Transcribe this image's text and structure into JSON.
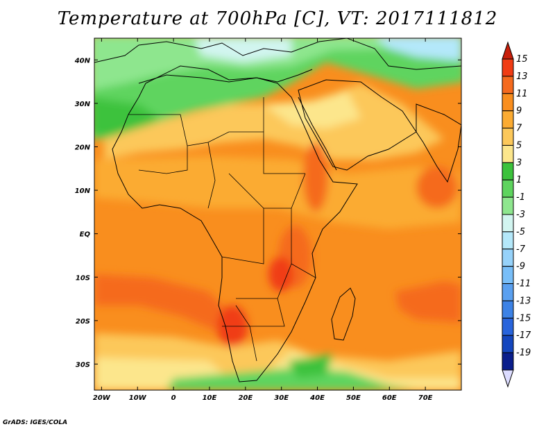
{
  "title": "Temperature at 700hPa [C], VT: 2017111812",
  "credit": "GrADS: IGES/COLA",
  "map": {
    "lon_range": [
      -22,
      80
    ],
    "lat_range": [
      -36,
      45
    ],
    "x_ticks": [
      "20W",
      "10W",
      "0",
      "10E",
      "20E",
      "30E",
      "40E",
      "50E",
      "60E",
      "70E"
    ],
    "x_tick_lons": [
      -20,
      -10,
      0,
      10,
      20,
      30,
      40,
      50,
      60,
      70
    ],
    "y_ticks": [
      "40N",
      "30N",
      "20N",
      "10N",
      "EQ",
      "10S",
      "20S",
      "30S"
    ],
    "y_tick_lats": [
      40,
      30,
      20,
      10,
      0,
      -10,
      -20,
      -30
    ],
    "border_color": "#000000"
  },
  "colorbar": {
    "labels": [
      "15",
      "13",
      "11",
      "9",
      "7",
      "5",
      "3",
      "1",
      "-1",
      "-3",
      "-5",
      "-7",
      "-9",
      "-11",
      "-13",
      "-15",
      "-17",
      "-19"
    ],
    "colors": [
      "#f03c14",
      "#f56a1e",
      "#f98e1e",
      "#fbab32",
      "#fcc85a",
      "#fce68c",
      "#3cc23c",
      "#5ed45e",
      "#8ee68e",
      "#d2f5f0",
      "#b4e8fa",
      "#96d2fa",
      "#78bef8",
      "#5aa0f0",
      "#3c82e6",
      "#2864dc",
      "#1446be",
      "#0a1e8c"
    ],
    "top_arrow_color": "#c81e0a",
    "bottom_arrow_color": "#dcdcff"
  }
}
